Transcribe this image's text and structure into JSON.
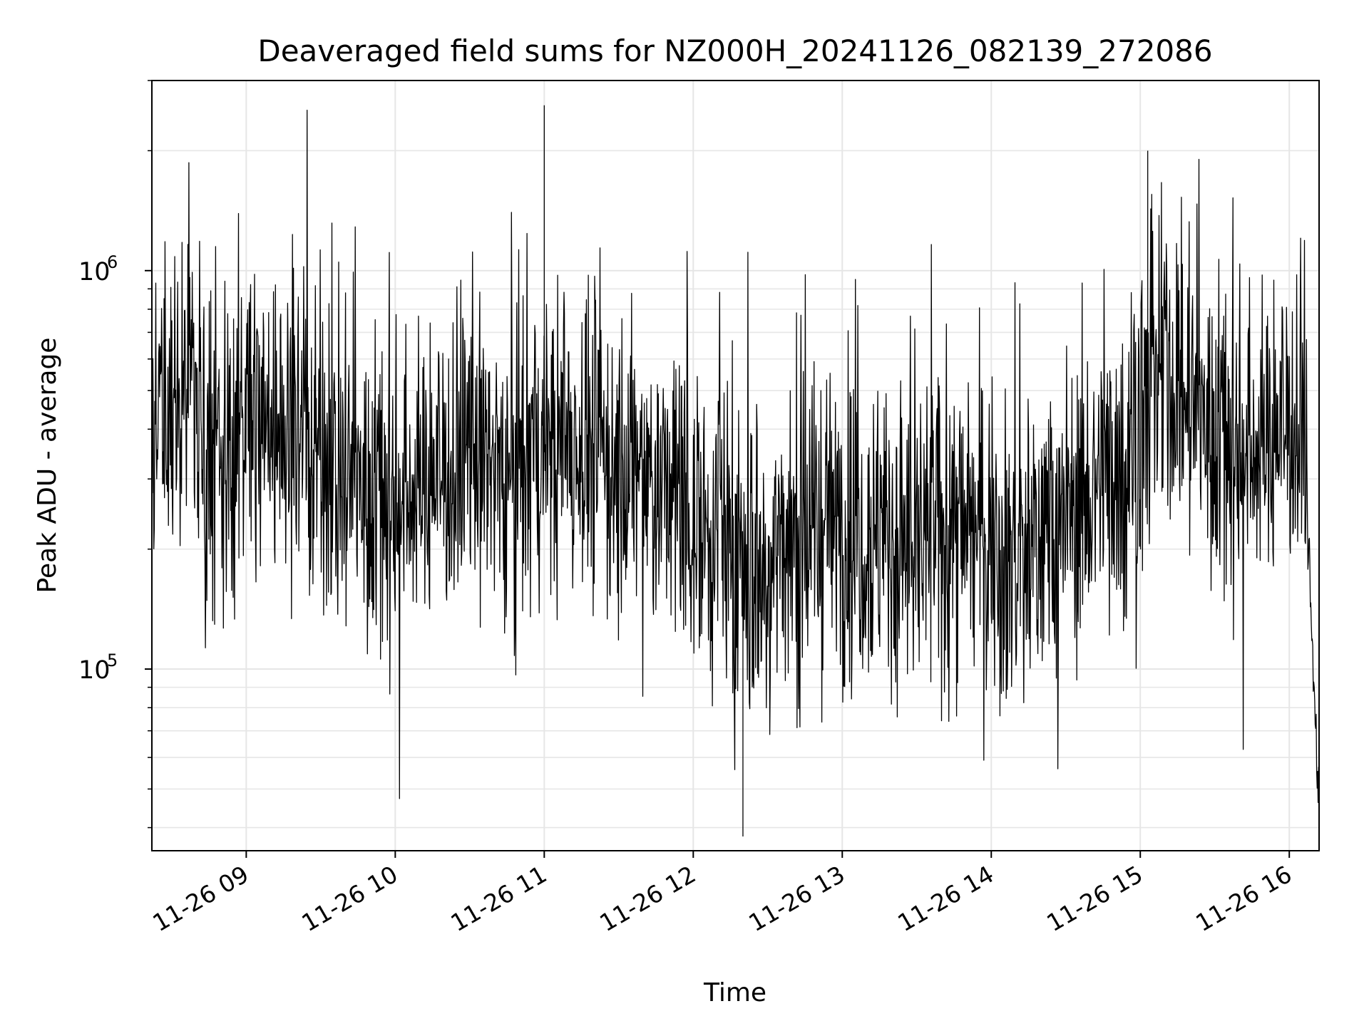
{
  "chart_data": {
    "type": "line",
    "title": "Deaveraged field sums for NZ000H_20241126_082139_272086",
    "xlabel": "Time",
    "ylabel": "Peak ADU - average",
    "yscale": "log",
    "ylim": [
      35000,
      3000000
    ],
    "xlim": [
      "2024-11-26 08:22",
      "2024-11-26 16:12"
    ],
    "grid": true,
    "line_color": "#000000",
    "grid_color": "#e6e6e6",
    "x_ticks": [
      "11-26 09",
      "11-26 10",
      "11-26 11",
      "11-26 12",
      "11-26 13",
      "11-26 14",
      "11-26 15",
      "11-26 16"
    ],
    "y_ticks": [
      {
        "value": 100000,
        "base": "10",
        "exp": "5"
      },
      {
        "value": 1000000,
        "base": "10",
        "exp": "6"
      }
    ],
    "series": [
      {
        "x": [
          "2024-11-26 08:22",
          "2024-11-26 08:30",
          "2024-11-26 08:36",
          "2024-11-26 08:40",
          "2024-11-26 08:47",
          "2024-11-26 08:54",
          "2024-11-26 09:00",
          "2024-11-26 09:10",
          "2024-11-26 09:20",
          "2024-11-26 09:30",
          "2024-11-26 09:40",
          "2024-11-26 09:50",
          "2024-11-26 10:00",
          "2024-11-26 10:10",
          "2024-11-26 10:20",
          "2024-11-26 10:30",
          "2024-11-26 10:40",
          "2024-11-26 10:50",
          "2024-11-26 11:00",
          "2024-11-26 11:10",
          "2024-11-26 11:20",
          "2024-11-26 11:30",
          "2024-11-26 11:40",
          "2024-11-26 11:50",
          "2024-11-26 12:00",
          "2024-11-26 12:10",
          "2024-11-26 12:17",
          "2024-11-26 12:25",
          "2024-11-26 12:35",
          "2024-11-26 12:45",
          "2024-11-26 12:55",
          "2024-11-26 13:05",
          "2024-11-26 13:15",
          "2024-11-26 13:25",
          "2024-11-26 13:35",
          "2024-11-26 13:45",
          "2024-11-26 13:55",
          "2024-11-26 14:05",
          "2024-11-26 14:15",
          "2024-11-26 14:25",
          "2024-11-26 14:35",
          "2024-11-26 14:45",
          "2024-11-26 14:55",
          "2024-11-26 15:02",
          "2024-11-26 15:10",
          "2024-11-26 15:20",
          "2024-11-26 15:30",
          "2024-11-26 15:40",
          "2024-11-26 15:50",
          "2024-11-26 16:00",
          "2024-11-26 16:06",
          "2024-11-26 16:09",
          "2024-11-26 16:12"
        ],
        "y": [
          400000,
          420000,
          600000,
          480000,
          300000,
          350000,
          450000,
          420000,
          400000,
          350000,
          300000,
          280000,
          260000,
          300000,
          320000,
          350000,
          330000,
          300000,
          350000,
          380000,
          360000,
          320000,
          300000,
          280000,
          250000,
          230000,
          180000,
          170000,
          200000,
          220000,
          240000,
          230000,
          220000,
          200000,
          210000,
          230000,
          220000,
          190000,
          200000,
          230000,
          260000,
          300000,
          350000,
          500000,
          550000,
          450000,
          400000,
          350000,
          380000,
          420000,
          450000,
          120000,
          45000
        ]
      }
    ]
  }
}
